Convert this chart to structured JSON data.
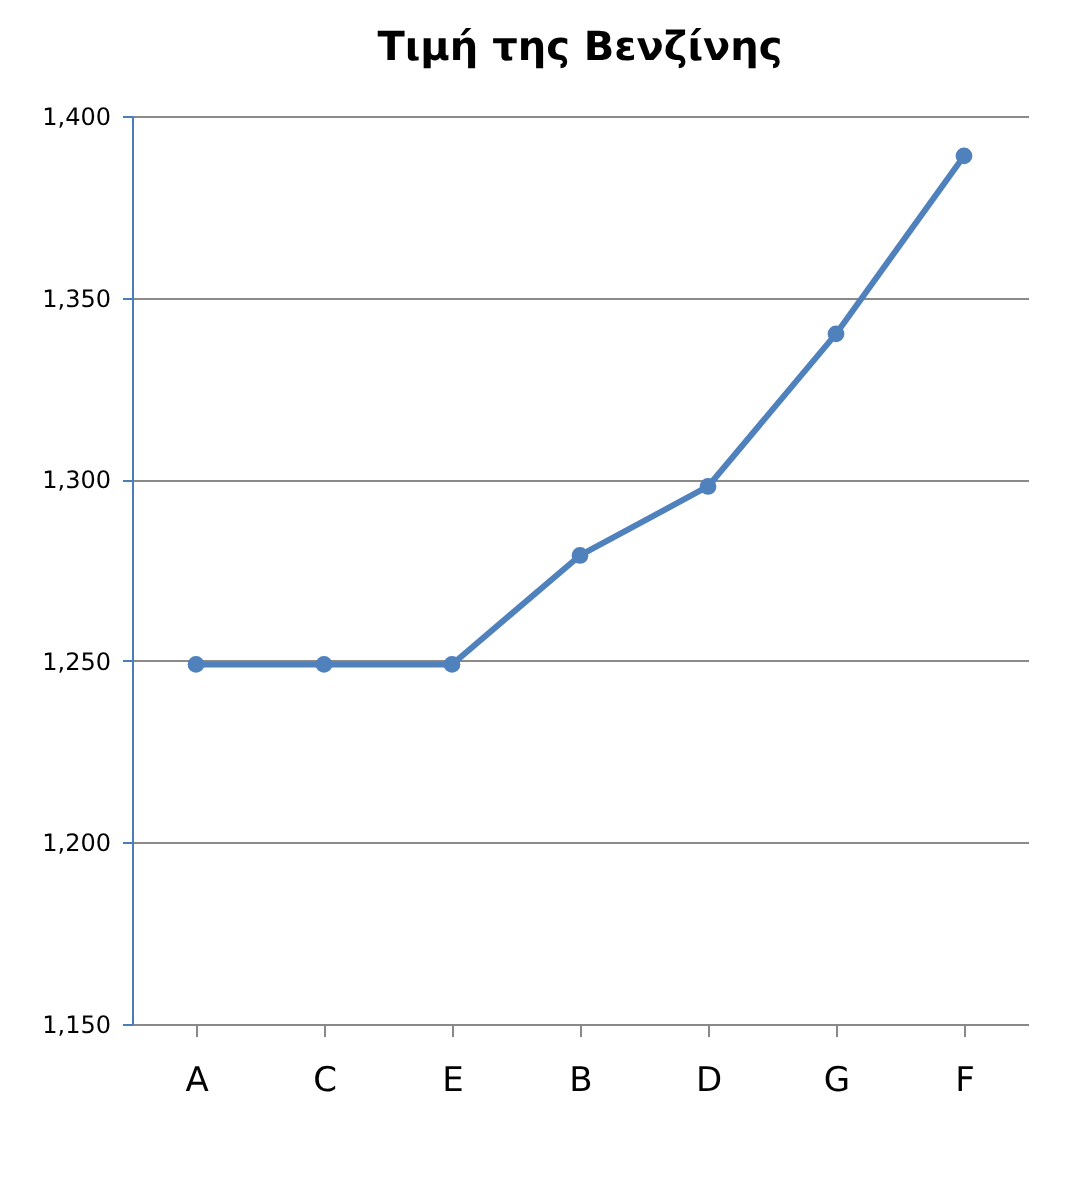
{
  "chart_data": {
    "type": "line",
    "title": "Τιμή της Βενζίνης",
    "categories": [
      "A",
      "C",
      "E",
      "B",
      "D",
      "G",
      "F"
    ],
    "series": [
      {
        "color": "#4f81bd",
        "values": [
          1249,
          1249,
          1249,
          1279,
          1298,
          1340,
          1389
        ]
      }
    ],
    "ylim": [
      1150,
      1400
    ],
    "yticks": [
      {
        "value": 1150,
        "label": "1,150"
      },
      {
        "value": 1200,
        "label": "1,200"
      },
      {
        "value": 1250,
        "label": "1,250"
      },
      {
        "value": 1300,
        "label": "1,300"
      },
      {
        "value": 1350,
        "label": "1,350"
      },
      {
        "value": 1400,
        "label": "1,400"
      }
    ],
    "grid": "y",
    "marker": "circle",
    "line_style": "solid"
  }
}
